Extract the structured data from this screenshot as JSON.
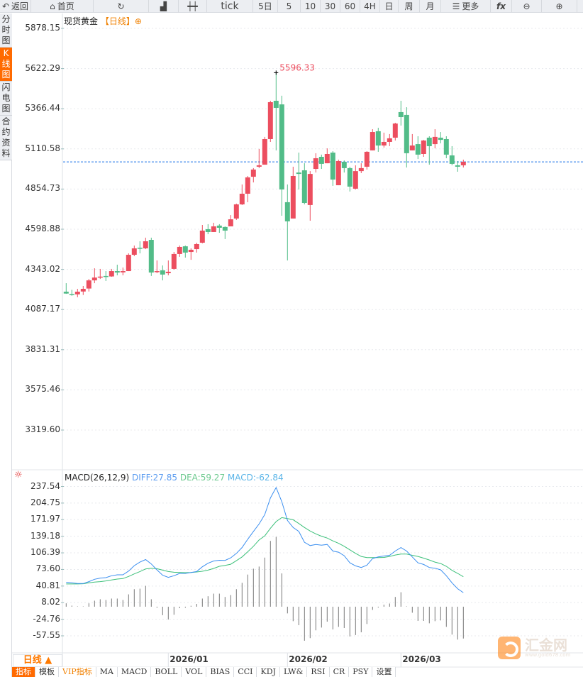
{
  "toolbar": {
    "back": "返回",
    "home": "首页",
    "tick": "tick",
    "five_day": "5日",
    "periods": [
      "5",
      "10",
      "30",
      "60",
      "4H",
      "日",
      "周",
      "月"
    ],
    "more": "更多",
    "fx": "fx"
  },
  "sidebar": {
    "tabs": [
      "分时图",
      "K线图",
      "闪电图",
      "合约资料"
    ],
    "active": 1
  },
  "chart": {
    "symbol": "现货黄金",
    "period": "【日线】",
    "y_labels": [
      "5878.15",
      "5622.29",
      "5366.44",
      "5110.58",
      "4854.73",
      "4598.88",
      "4343.02",
      "4087.17",
      "3831.31",
      "3575.46",
      "3319.60"
    ],
    "high_marker": "5596.33",
    "last_price": 5028
  },
  "macd": {
    "title": "MACD(26,12,9)",
    "diff_label": "DIFF:27.85",
    "dea_label": "DEA:59.27",
    "macd_label": "MACD:-62.84",
    "y_labels": [
      "237.54",
      "204.75",
      "171.97",
      "139.18",
      "106.39",
      "73.60",
      "40.81",
      "8.02",
      "-24.76",
      "-57.55"
    ]
  },
  "x_axis": {
    "period_button": "日线 ▲",
    "labels": [
      {
        "text": "2026/01",
        "index": 18
      },
      {
        "text": "2026/02",
        "index": 39
      },
      {
        "text": "2026/03",
        "index": 59
      }
    ]
  },
  "bottom_tabs": [
    "指标",
    "模板",
    "VIP指标",
    "MA",
    "MACD",
    "BOLL",
    "VOL",
    "BIAS",
    "CCI",
    "KDJ",
    "LW&",
    "RSI",
    "CR",
    "PSY",
    "设置"
  ],
  "logo": {
    "text": "汇金网",
    "url": "www.gold678.com"
  },
  "colors": {
    "up": "#ec4e5f",
    "down": "#52bc88",
    "diff": "#3b8ff0",
    "dea": "#3cc07a",
    "accent": "#ff6a00",
    "last_line": "#1a73e8"
  },
  "chart_data": {
    "type": "candlestick",
    "ylim": [
      3319.6,
      5878.15
    ],
    "ohlc": [
      [
        4201,
        4255,
        4187,
        4189
      ],
      [
        4186,
        4213,
        4175,
        4183
      ],
      [
        4184,
        4219,
        4166,
        4201
      ],
      [
        4202,
        4237,
        4180,
        4219
      ],
      [
        4221,
        4282,
        4202,
        4273
      ],
      [
        4273,
        4350,
        4255,
        4291
      ],
      [
        4293,
        4346,
        4282,
        4297
      ],
      [
        4301,
        4332,
        4269,
        4298
      ],
      [
        4298,
        4346,
        4296,
        4332
      ],
      [
        4332,
        4373,
        4305,
        4323
      ],
      [
        4324,
        4355,
        4305,
        4332
      ],
      [
        4332,
        4445,
        4332,
        4436
      ],
      [
        4436,
        4495,
        4427,
        4477
      ],
      [
        4481,
        4522,
        4445,
        4474
      ],
      [
        4477,
        4545,
        4472,
        4522
      ],
      [
        4531,
        4545,
        4301,
        4323
      ],
      [
        4328,
        4400,
        4319,
        4332
      ],
      [
        4337,
        4368,
        4273,
        4310
      ],
      [
        4319,
        4400,
        4305,
        4328
      ],
      [
        4346,
        4454,
        4341,
        4441
      ],
      [
        4441,
        4495,
        4423,
        4486
      ],
      [
        4490,
        4495,
        4418,
        4450
      ],
      [
        4454,
        4477,
        4404,
        4468
      ],
      [
        4472,
        4513,
        4450,
        4504
      ],
      [
        4513,
        4626,
        4509,
        4590
      ],
      [
        4599,
        4631,
        4567,
        4581
      ],
      [
        4581,
        4640,
        4581,
        4617
      ],
      [
        4622,
        4631,
        4576,
        4608
      ],
      [
        4613,
        4617,
        4536,
        4590
      ],
      [
        4617,
        4689,
        4617,
        4662
      ],
      [
        4667,
        4762,
        4658,
        4757
      ],
      [
        4757,
        4884,
        4753,
        4825
      ],
      [
        4825,
        4938,
        4771,
        4929
      ],
      [
        4933,
        4988,
        4897,
        4979
      ],
      [
        4997,
        5110,
        4988,
        5006
      ],
      [
        5010,
        5187,
        5010,
        5173
      ],
      [
        5173,
        5417,
        5155,
        5408
      ],
      [
        5417,
        5596.33,
        5101,
        5372
      ],
      [
        5394,
        5449,
        4685,
        4852
      ],
      [
        4771,
        4884,
        4400,
        4649
      ],
      [
        4667,
        4997,
        4667,
        4938
      ],
      [
        4960,
        5087,
        4852,
        4951
      ],
      [
        4974,
        5019,
        4757,
        4766
      ],
      [
        4753,
        4969,
        4653,
        4951
      ],
      [
        4983,
        5083,
        4960,
        5051
      ],
      [
        5060,
        5074,
        4983,
        5015
      ],
      [
        5019,
        5114,
        5019,
        5078
      ],
      [
        5087,
        5096,
        4875,
        4915
      ],
      [
        4879,
        5042,
        4879,
        5033
      ],
      [
        5028,
        5037,
        4960,
        4988
      ],
      [
        4988,
        4997,
        4839,
        4870
      ],
      [
        4857,
        5006,
        4852,
        4969
      ],
      [
        4969,
        5019,
        4956,
        4988
      ],
      [
        4997,
        5096,
        4979,
        5092
      ],
      [
        5101,
        5236,
        5101,
        5218
      ],
      [
        5223,
        5245,
        5092,
        5132
      ],
      [
        5132,
        5214,
        5119,
        5155
      ],
      [
        5155,
        5205,
        5128,
        5178
      ],
      [
        5182,
        5277,
        5164,
        5272
      ],
      [
        5345,
        5417,
        5259,
        5313
      ],
      [
        5327,
        5376,
        4992,
        5083
      ],
      [
        5101,
        5205,
        5101,
        5132
      ],
      [
        5141,
        5191,
        5046,
        5074
      ],
      [
        5078,
        5168,
        5060,
        5164
      ],
      [
        5182,
        5191,
        5010,
        5128
      ],
      [
        5141,
        5236,
        5114,
        5187
      ],
      [
        5182,
        5218,
        5146,
        5168
      ],
      [
        5173,
        5191,
        5051,
        5074
      ],
      [
        5069,
        5128,
        5006,
        5015
      ],
      [
        5006,
        5033,
        4965,
        4997
      ],
      [
        5006,
        5042,
        4992,
        5028
      ]
    ],
    "macd": {
      "ylim": [
        -57.55,
        237.54
      ],
      "diff": [
        48.1,
        47.2,
        45.8,
        45.8,
        49.5,
        54.2,
        56.5,
        57.4,
        61.2,
        63.0,
        63.0,
        70.4,
        81.1,
        88.1,
        93.2,
        84.4,
        72.8,
        62.1,
        57.9,
        61.2,
        65.8,
        65.8,
        67.7,
        69.5,
        78.8,
        85.8,
        90.4,
        91.8,
        91.4,
        96.5,
        105.3,
        117.0,
        133.2,
        148.6,
        163.4,
        182,
        215,
        235.5,
        207.6,
        170.4,
        156.5,
        148.6,
        127.2,
        120.7,
        123.0,
        121.6,
        123.0,
        110.0,
        107.7,
        100.7,
        86.7,
        80.7,
        77.4,
        82.1,
        95.1,
        98.3,
        100.2,
        101.6,
        110.0,
        116.9,
        110.0,
        98.3,
        86.7,
        83.5,
        77.4,
        76.0,
        72.8,
        61.2,
        47.2,
        35.6,
        27.85
      ],
      "dea": [
        44.9,
        44.9,
        44.9,
        45.3,
        47.2,
        48.6,
        49.5,
        50.9,
        52.8,
        54.6,
        55.6,
        59.8,
        64.9,
        69.5,
        74.6,
        76.0,
        75.1,
        72.3,
        69.5,
        68.1,
        67.7,
        67.2,
        67.7,
        68.6,
        70.0,
        72.3,
        75.6,
        79.8,
        81.6,
        83.9,
        90.9,
        98.3,
        108.6,
        119.3,
        131.8,
        140,
        155,
        168.1,
        176.0,
        174.1,
        171.8,
        164.4,
        156.5,
        149.5,
        143.9,
        139.3,
        135.6,
        130.0,
        125.3,
        119.3,
        112.3,
        105.3,
        99.3,
        97.0,
        97.0,
        97.0,
        97.4,
        99.3,
        102.1,
        103.9,
        103.9,
        101.6,
        99.3,
        96.0,
        92.3,
        88.1,
        85.3,
        79.8,
        71.8,
        65.8,
        59.27
      ],
      "hist": [
        6.7,
        2.1,
        0.7,
        0.7,
        6.7,
        11.9,
        14.7,
        13.3,
        16.1,
        16.1,
        13.3,
        24.4,
        34.6,
        35.6,
        41.2,
        14.7,
        -2.0,
        -16.8,
        -25.2,
        -15.9,
        -2.9,
        -2.0,
        1.8,
        5.5,
        16.1,
        20.7,
        25.8,
        25.8,
        19.3,
        23.0,
        34.6,
        47.2,
        63.5,
        75.1,
        79.3,
        97.0,
        130.0,
        137.9,
        65.8,
        -13.2,
        -28.6,
        -36.5,
        -67.2,
        -62.1,
        -46.7,
        -41.2,
        -29.5,
        -44.9,
        -39.8,
        -42.1,
        -58.8,
        -56.0,
        -50.5,
        -34.2,
        -6.3,
        -1.6,
        3.9,
        6.3,
        19.3,
        28.6,
        0.7,
        -11.9,
        -28.1,
        -28.1,
        -32.8,
        -28.6,
        -27.2,
        -39.8,
        -55.1,
        -64.9,
        -62.84
      ]
    }
  }
}
